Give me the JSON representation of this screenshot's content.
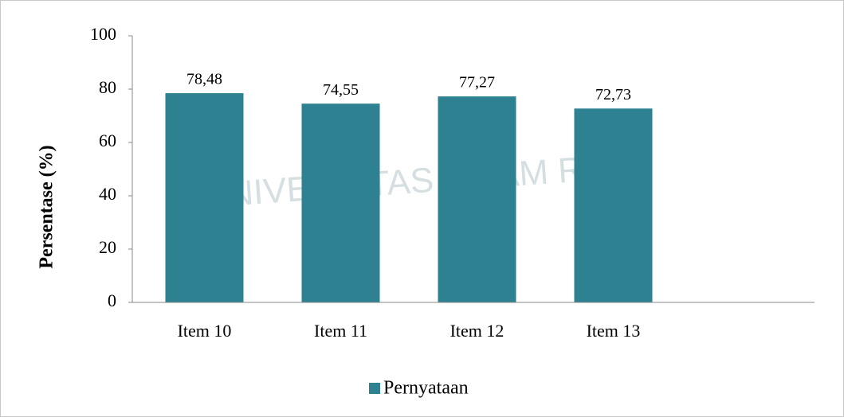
{
  "chart_data": {
    "type": "bar",
    "watermark": "UNIVERSITAS ISLAM RIAU",
    "y_label": "Persentase (%)",
    "categories": [
      "Item 10",
      "Item 11",
      "Item 12",
      "Item 13"
    ],
    "series": [
      {
        "name": "Pernyataan",
        "color": "#2e8190",
        "values": [
          78.48,
          74.55,
          77.27,
          72.73
        ],
        "value_labels": [
          "78,48",
          "74,55",
          "77,27",
          "72,73"
        ]
      }
    ],
    "ylim": [
      0,
      100
    ],
    "yticks": [
      0,
      20,
      40,
      60,
      80,
      100
    ],
    "legend": "bottom"
  }
}
